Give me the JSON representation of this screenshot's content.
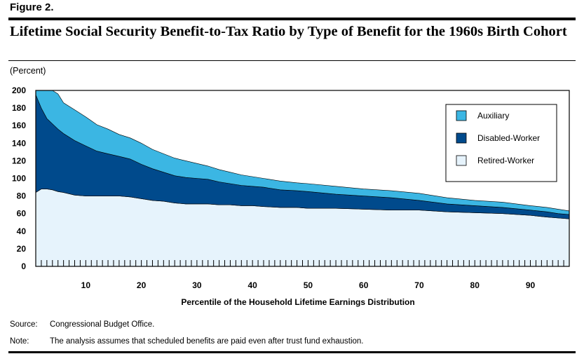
{
  "figure_label": "Figure 2.",
  "title": "Lifetime Social Security Benefit-to-Tax Ratio by Type of Benefit for the 1960s Birth Cohort",
  "unit_label": "(Percent)",
  "source": {
    "label": "Source:",
    "text": "Congressional Budget Office."
  },
  "note": {
    "label": "Note:",
    "text": "The analysis assumes that scheduled benefits are paid even after trust fund exhaustion."
  },
  "colors": {
    "auxiliary": "#3bb6e3",
    "disabled": "#004a8c",
    "retired": "#e6f3fc"
  },
  "chart_data": {
    "type": "area",
    "stacked": true,
    "title": "Lifetime Social Security Benefit-to-Tax Ratio by Type of Benefit for the 1960s Birth Cohort",
    "xlabel": "Percentile of the Household Lifetime Earnings Distribution",
    "ylabel": "(Percent)",
    "xlim": [
      1,
      97
    ],
    "ylim": [
      0,
      200
    ],
    "x_ticks": [
      10,
      20,
      30,
      40,
      50,
      60,
      70,
      80,
      90
    ],
    "y_ticks": [
      0,
      20,
      40,
      60,
      80,
      100,
      120,
      140,
      160,
      180,
      200
    ],
    "legend": [
      "Auxiliary",
      "Disabled-Worker",
      "Retired-Worker"
    ],
    "legend_position": "top-right",
    "x": [
      1,
      2,
      3,
      4,
      5,
      6,
      8,
      10,
      12,
      14,
      16,
      18,
      20,
      22,
      24,
      26,
      28,
      30,
      32,
      34,
      36,
      38,
      40,
      42,
      45,
      48,
      50,
      55,
      60,
      65,
      70,
      75,
      80,
      85,
      90,
      93,
      95,
      97
    ],
    "series": [
      {
        "name": "Retired-Worker",
        "values": [
          84,
          88,
          88,
          87,
          85,
          84,
          81,
          80,
          80,
          80,
          80,
          79,
          77,
          75,
          74,
          72,
          71,
          71,
          71,
          70,
          70,
          69,
          69,
          68,
          67,
          67,
          66,
          66,
          65,
          64,
          64,
          62,
          61,
          60,
          58,
          56,
          55,
          54
        ]
      },
      {
        "name": "Disabled-Worker",
        "values": [
          111,
          92,
          80,
          75,
          71,
          67,
          62,
          57,
          51,
          48,
          45,
          43,
          39,
          36,
          33,
          31,
          30,
          29,
          28,
          26,
          24,
          23,
          22,
          22,
          20,
          19,
          19,
          16,
          15,
          14,
          11,
          9,
          8,
          7,
          6,
          6,
          5,
          5
        ]
      },
      {
        "name": "Auxiliary",
        "values": [
          5,
          20,
          32,
          38,
          40,
          35,
          35,
          33,
          30,
          28,
          25,
          24,
          24,
          22,
          21,
          20,
          19,
          17,
          15,
          14,
          13,
          12,
          11,
          10,
          10,
          9,
          9,
          9,
          8,
          8,
          8,
          7,
          6,
          6,
          5,
          5,
          5,
          4
        ]
      }
    ]
  }
}
